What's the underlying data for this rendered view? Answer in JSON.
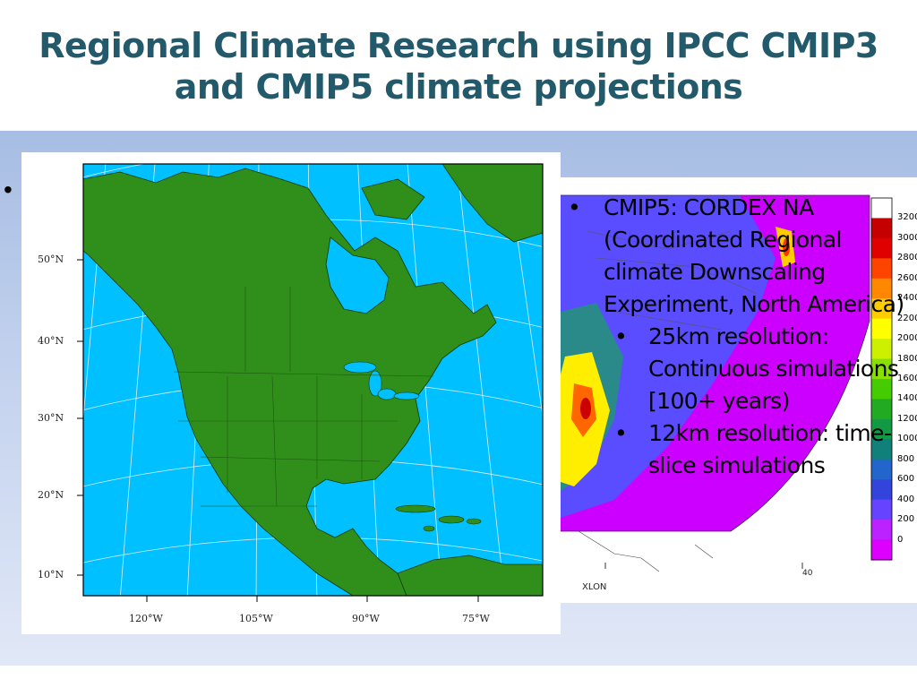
{
  "slide": {
    "title": "Regional Climate Research using IPCC CMIP3 and CMIP5 climate projections",
    "outer_bullet": "•"
  },
  "left_map": {
    "lat_labels": [
      "50°N",
      "40°N",
      "30°N",
      "20°N",
      "10°N"
    ],
    "lon_labels": [
      "120°W",
      "105°W",
      "90°W",
      "75°W"
    ],
    "colors": {
      "ocean": "#00c0ff",
      "land": "#2f8f1a",
      "grid": "#dddddd",
      "border": "#000000"
    }
  },
  "elev_map": {
    "x_axis_label": "XLON",
    "lon_tick": "40",
    "colorbar_ticks": [
      "3200",
      "3000",
      "2800",
      "2600",
      "2400",
      "2200",
      "2000",
      "1800",
      "1600",
      "1400",
      "1200",
      "1000",
      "800",
      "600",
      "400",
      "200",
      "0"
    ],
    "colorbar_colors": [
      "#ffffff",
      "#c40000",
      "#e00000",
      "#ff4400",
      "#ff8800",
      "#ffcc00",
      "#ffff00",
      "#ccf000",
      "#88e000",
      "#44cc00",
      "#22aa22",
      "#119944",
      "#10807a",
      "#2266cc",
      "#3344dd",
      "#6644ff",
      "#bb22ff",
      "#dd00ff"
    ]
  },
  "bullets": {
    "main": "CMIP5: CORDEX NA (Coordinated Regional climate Downscaling Experiment, North America)",
    "sub1": "25km resolution: Continuous simulations [100+ years)",
    "sub2": "12km resolution: time-slice simulations",
    "marker": "•"
  }
}
